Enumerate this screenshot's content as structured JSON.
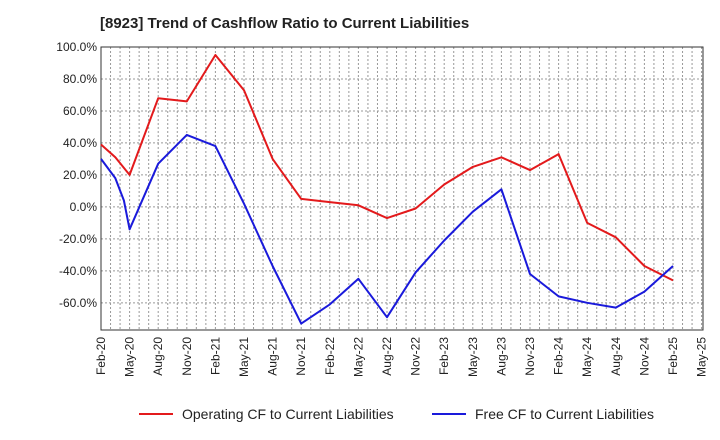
{
  "chart_data": {
    "type": "line",
    "title": "[8923]  Trend of Cashflow Ratio to Current Liabilities",
    "xlabel": "",
    "ylabel": "",
    "ylim": [
      -77,
      100
    ],
    "yticks": [
      100,
      80,
      60,
      40,
      20,
      0,
      -20,
      -40,
      -60
    ],
    "ytick_labels": [
      "100.0%",
      "80.0%",
      "60.0%",
      "40.0%",
      "20.0%",
      "0.0%",
      "-20.0%",
      "-40.0%",
      "-60.0%"
    ],
    "x_tick_labels": [
      "Feb-20",
      "May-20",
      "Aug-20",
      "Nov-20",
      "Feb-21",
      "May-21",
      "Aug-21",
      "Nov-21",
      "Feb-22",
      "May-22",
      "Aug-22",
      "Nov-22",
      "Feb-23",
      "May-23",
      "Aug-23",
      "Nov-23",
      "Feb-24",
      "May-24",
      "Aug-24",
      "Nov-24",
      "Feb-25",
      "May-25"
    ],
    "grid": true,
    "legend_position": "bottom",
    "series": [
      {
        "name": "Operating CF to Current Liabilities",
        "color": "#e31a1c",
        "points": [
          [
            0,
            39
          ],
          [
            0.5,
            31
          ],
          [
            1,
            20
          ],
          [
            2,
            68
          ],
          [
            3,
            66
          ],
          [
            4,
            95
          ],
          [
            5,
            73
          ],
          [
            6,
            30
          ],
          [
            7,
            5
          ],
          [
            8,
            3
          ],
          [
            9,
            1
          ],
          [
            10,
            -7
          ],
          [
            11,
            -1
          ],
          [
            12,
            14
          ],
          [
            13,
            25
          ],
          [
            14,
            31
          ],
          [
            15,
            23
          ],
          [
            16,
            33
          ],
          [
            17,
            -10
          ],
          [
            18,
            -19
          ],
          [
            19,
            -37
          ],
          [
            20,
            -46
          ]
        ]
      },
      {
        "name": "Free CF to Current Liabilities",
        "color": "#1a1adb",
        "points": [
          [
            0,
            30
          ],
          [
            0.5,
            18
          ],
          [
            0.8,
            4
          ],
          [
            1,
            -14
          ],
          [
            2,
            27
          ],
          [
            3,
            45
          ],
          [
            4,
            38
          ],
          [
            5,
            2
          ],
          [
            6,
            -37
          ],
          [
            7,
            -73
          ],
          [
            8,
            -61
          ],
          [
            9,
            -45
          ],
          [
            10,
            -69
          ],
          [
            11,
            -41
          ],
          [
            12,
            -21
          ],
          [
            13,
            -3
          ],
          [
            14,
            11
          ],
          [
            15,
            -42
          ],
          [
            16,
            -56
          ],
          [
            17,
            -60
          ],
          [
            18,
            -63
          ],
          [
            19,
            -53
          ],
          [
            20,
            -37
          ]
        ]
      }
    ]
  }
}
